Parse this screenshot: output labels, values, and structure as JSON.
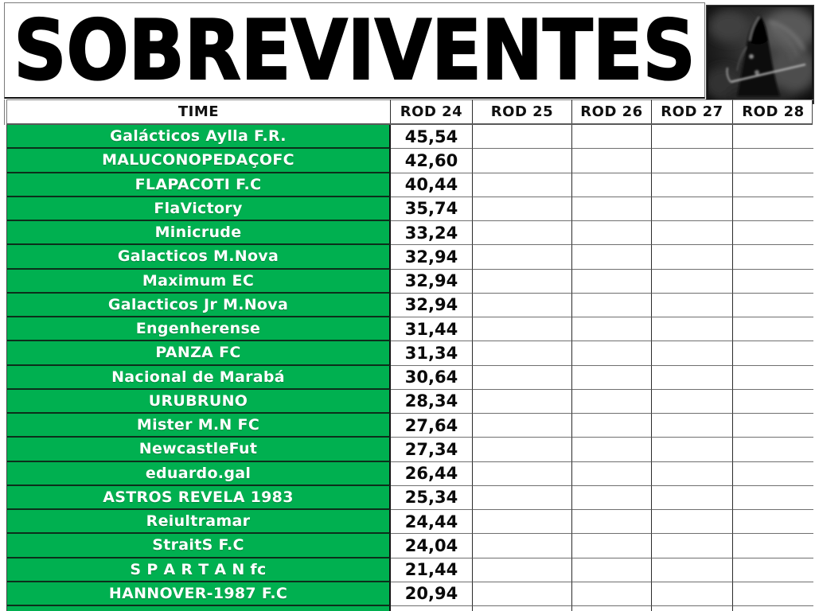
{
  "title": "SOBREVIVENTES",
  "logo": {
    "name": "grim-reaper-image"
  },
  "columns": [
    "TIME",
    "ROD 24",
    "ROD 25",
    "ROD 26",
    "ROD 27",
    "ROD 28"
  ],
  "rows": [
    {
      "team": "Galácticos Aylla F.R.",
      "rod24": "45,54"
    },
    {
      "team": "MALUCONOPEDAÇOFC",
      "rod24": "42,60"
    },
    {
      "team": "FLAPACOTI F.C",
      "rod24": "40,44"
    },
    {
      "team": "FlaVictory",
      "rod24": "35,74"
    },
    {
      "team": "Minicrude",
      "rod24": "33,24"
    },
    {
      "team": "Galacticos M.Nova",
      "rod24": "32,94"
    },
    {
      "team": "Maximum EC",
      "rod24": "32,94"
    },
    {
      "team": "Galacticos Jr M.Nova",
      "rod24": "32,94"
    },
    {
      "team": "Engenherense",
      "rod24": "31,44"
    },
    {
      "team": "PANZA FC",
      "rod24": "31,34"
    },
    {
      "team": "Nacional de Marabá",
      "rod24": "30,64"
    },
    {
      "team": "URUBRUNO",
      "rod24": "28,34"
    },
    {
      "team": "Mister M.N FC",
      "rod24": "27,64"
    },
    {
      "team": "NewcastleFut",
      "rod24": "27,34"
    },
    {
      "team": "eduardo.gal",
      "rod24": "26,44"
    },
    {
      "team": "ASTROS REVELA 1983",
      "rod24": "25,34"
    },
    {
      "team": "Reiultramar",
      "rod24": "24,44"
    },
    {
      "team": "StraitS F.C",
      "rod24": "24,04"
    },
    {
      "team": "S P A R T A N fc",
      "rod24": "21,44"
    },
    {
      "team": "HANNOVER-1987 F.C",
      "rod24": "20,94"
    }
  ],
  "colors": {
    "team_fill": "#00B050",
    "team_text": "#FFFFFF",
    "value_text": "#0A0A0A",
    "grid_line": "#2B2B2B",
    "header_divider": "#595959"
  }
}
